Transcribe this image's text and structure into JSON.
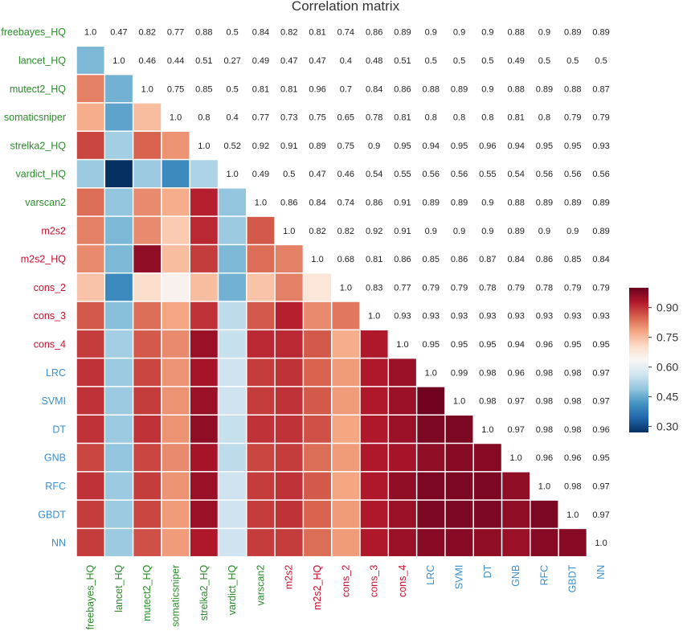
{
  "chart_data": {
    "type": "heatmap",
    "title": "Correlation matrix",
    "labels": [
      "freebayes_HQ",
      "lancet_HQ",
      "mutect2_HQ",
      "somaticsniper",
      "strelka2_HQ",
      "vardict_HQ",
      "varscan2",
      "m2s2",
      "m2s2_HQ",
      "cons_2",
      "cons_3",
      "cons_4",
      "LRC",
      "SVMI",
      "DT",
      "GNB",
      "RFC",
      "GBDT",
      "NN"
    ],
    "label_groups": [
      "green",
      "green",
      "green",
      "green",
      "green",
      "green",
      "green",
      "red",
      "red",
      "red",
      "red",
      "red",
      "blue",
      "blue",
      "blue",
      "blue",
      "blue",
      "blue",
      "blue"
    ],
    "group_colors": {
      "green": "#2a8c2a",
      "red": "#c8102e",
      "blue": "#3b8fd0"
    },
    "values": [
      [
        "1.0",
        "0.47",
        "0.82",
        "0.77",
        "0.88",
        "0.5",
        "0.84",
        "0.82",
        "0.81",
        "0.74",
        "0.86",
        "0.89",
        "0.9",
        "0.9",
        "0.9",
        "0.88",
        "0.9",
        "0.89",
        "0.89"
      ],
      [
        "0.47",
        "1.0",
        "0.46",
        "0.44",
        "0.51",
        "0.27",
        "0.49",
        "0.47",
        "0.47",
        "0.4",
        "0.48",
        "0.51",
        "0.5",
        "0.5",
        "0.5",
        "0.49",
        "0.5",
        "0.5",
        "0.5"
      ],
      [
        "0.82",
        "0.46",
        "1.0",
        "0.75",
        "0.85",
        "0.5",
        "0.81",
        "0.81",
        "0.96",
        "0.7",
        "0.84",
        "0.86",
        "0.88",
        "0.89",
        "0.9",
        "0.88",
        "0.89",
        "0.88",
        "0.87"
      ],
      [
        "0.77",
        "0.44",
        "0.75",
        "1.0",
        "0.8",
        "0.4",
        "0.77",
        "0.73",
        "0.75",
        "0.65",
        "0.78",
        "0.81",
        "0.8",
        "0.8",
        "0.8",
        "0.81",
        "0.8",
        "0.79",
        "0.79"
      ],
      [
        "0.88",
        "0.51",
        "0.85",
        "0.8",
        "1.0",
        "0.52",
        "0.92",
        "0.91",
        "0.89",
        "0.75",
        "0.9",
        "0.95",
        "0.94",
        "0.95",
        "0.96",
        "0.94",
        "0.95",
        "0.95",
        "0.93"
      ],
      [
        "0.5",
        "0.27",
        "0.5",
        "0.4",
        "0.52",
        "1.0",
        "0.49",
        "0.5",
        "0.47",
        "0.46",
        "0.54",
        "0.55",
        "0.56",
        "0.56",
        "0.55",
        "0.54",
        "0.56",
        "0.56",
        "0.56"
      ],
      [
        "0.84",
        "0.49",
        "0.81",
        "0.77",
        "0.92",
        "0.49",
        "1.0",
        "0.86",
        "0.84",
        "0.74",
        "0.86",
        "0.91",
        "0.89",
        "0.89",
        "0.9",
        "0.88",
        "0.89",
        "0.89",
        "0.89"
      ],
      [
        "0.82",
        "0.47",
        "0.81",
        "0.73",
        "0.91",
        "0.5",
        "0.86",
        "1.0",
        "0.82",
        "0.82",
        "0.92",
        "0.91",
        "0.9",
        "0.9",
        "0.9",
        "0.89",
        "0.9",
        "0.9",
        "0.89"
      ],
      [
        "0.81",
        "0.47",
        "0.96",
        "0.75",
        "0.89",
        "0.47",
        "0.84",
        "0.82",
        "1.0",
        "0.68",
        "0.81",
        "0.86",
        "0.85",
        "0.86",
        "0.87",
        "0.84",
        "0.86",
        "0.85",
        "0.84"
      ],
      [
        "0.74",
        "0.4",
        "0.7",
        "0.65",
        "0.75",
        "0.46",
        "0.74",
        "0.82",
        "0.68",
        "1.0",
        "0.83",
        "0.77",
        "0.79",
        "0.79",
        "0.78",
        "0.79",
        "0.78",
        "0.79",
        "0.79"
      ],
      [
        "0.86",
        "0.48",
        "0.84",
        "0.78",
        "0.9",
        "0.54",
        "0.86",
        "0.92",
        "0.81",
        "0.83",
        "1.0",
        "0.93",
        "0.93",
        "0.93",
        "0.93",
        "0.93",
        "0.93",
        "0.93",
        "0.93"
      ],
      [
        "0.89",
        "0.51",
        "0.86",
        "0.81",
        "0.95",
        "0.55",
        "0.91",
        "0.91",
        "0.86",
        "0.77",
        "0.93",
        "1.0",
        "0.95",
        "0.95",
        "0.95",
        "0.94",
        "0.96",
        "0.95",
        "0.95"
      ],
      [
        "0.9",
        "0.5",
        "0.88",
        "0.8",
        "0.94",
        "0.56",
        "0.89",
        "0.9",
        "0.85",
        "0.79",
        "0.93",
        "0.95",
        "1.0",
        "0.99",
        "0.98",
        "0.96",
        "0.98",
        "0.98",
        "0.97"
      ],
      [
        "0.9",
        "0.5",
        "0.89",
        "0.8",
        "0.95",
        "0.56",
        "0.89",
        "0.9",
        "0.86",
        "0.79",
        "0.93",
        "0.95",
        "0.99",
        "1.0",
        "0.98",
        "0.97",
        "0.98",
        "0.98",
        "0.97"
      ],
      [
        "0.9",
        "0.5",
        "0.9",
        "0.8",
        "0.96",
        "0.55",
        "0.9",
        "0.9",
        "0.87",
        "0.78",
        "0.93",
        "0.95",
        "0.98",
        "0.98",
        "1.0",
        "0.97",
        "0.98",
        "0.98",
        "0.96"
      ],
      [
        "0.88",
        "0.49",
        "0.88",
        "0.81",
        "0.94",
        "0.54",
        "0.88",
        "0.89",
        "0.84",
        "0.79",
        "0.93",
        "0.94",
        "0.96",
        "0.97",
        "0.97",
        "1.0",
        "0.96",
        "0.96",
        "0.95"
      ],
      [
        "0.9",
        "0.5",
        "0.89",
        "0.8",
        "0.95",
        "0.56",
        "0.89",
        "0.9",
        "0.86",
        "0.78",
        "0.93",
        "0.96",
        "0.98",
        "0.98",
        "0.98",
        "0.96",
        "1.0",
        "0.98",
        "0.97"
      ],
      [
        "0.89",
        "0.5",
        "0.88",
        "0.79",
        "0.95",
        "0.56",
        "0.89",
        "0.9",
        "0.85",
        "0.79",
        "0.93",
        "0.95",
        "0.98",
        "0.98",
        "0.98",
        "0.96",
        "0.98",
        "1.0",
        "0.97"
      ],
      [
        "0.89",
        "0.5",
        "0.87",
        "0.79",
        "0.93",
        "0.56",
        "0.89",
        "0.89",
        "0.84",
        "0.79",
        "0.93",
        "0.95",
        "0.97",
        "0.97",
        "0.96",
        "0.95",
        "0.97",
        "0.97",
        "1.0"
      ]
    ],
    "display": "values printed on and above the diagonal; color cells below the diagonal",
    "colorbar": {
      "min": 0.27,
      "max": 1.0,
      "ticks": [
        "0.90",
        "0.75",
        "0.60",
        "0.45",
        "0.30"
      ],
      "colormap": "RdBu_r",
      "stops": [
        "#053061",
        "#2166ac",
        "#4393c3",
        "#92c5de",
        "#d1e5f0",
        "#f7f7f7",
        "#fddbc7",
        "#f4a582",
        "#d6604d",
        "#b2182b",
        "#67001f"
      ]
    }
  }
}
